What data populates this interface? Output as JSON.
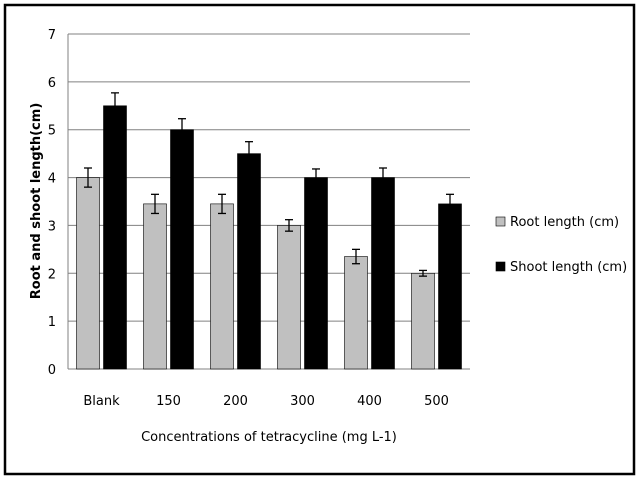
{
  "chart_data": {
    "type": "bar",
    "title": "",
    "xlabel": "Concentrations of tetracycline (mg L-1)",
    "ylabel": "Root and shoot length(cm)",
    "ylim": [
      0,
      7
    ],
    "yticks": [
      "0",
      "1",
      "2",
      "3",
      "4",
      "5",
      "6",
      "7"
    ],
    "categories": [
      "Blank",
      "150",
      "200",
      "300",
      "400",
      "500"
    ],
    "grid": true,
    "legend_position": "right",
    "series": [
      {
        "name": "Root length (cm)",
        "color": "#c0c0c0",
        "values": [
          4.0,
          3.45,
          3.45,
          3.0,
          2.35,
          2.0
        ],
        "errors": [
          0.2,
          0.2,
          0.2,
          0.12,
          0.15,
          0.06
        ]
      },
      {
        "name": "Shoot length (cm)",
        "color": "#000000",
        "values": [
          5.5,
          5.0,
          4.5,
          4.0,
          4.0,
          3.45
        ],
        "errors": [
          0.27,
          0.23,
          0.25,
          0.18,
          0.2,
          0.2
        ]
      }
    ]
  }
}
